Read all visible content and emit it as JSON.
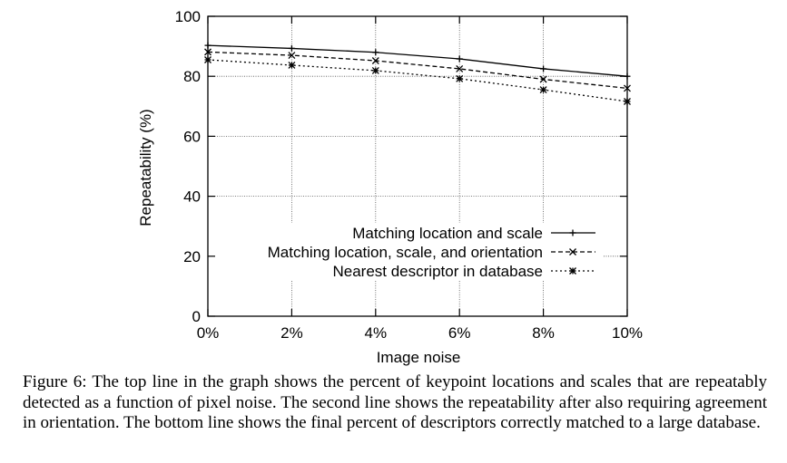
{
  "chart_data": {
    "type": "line",
    "title": "",
    "xlabel": "Image noise",
    "ylabel": "Repeatability (%)",
    "x": [
      0,
      2,
      4,
      6,
      8,
      10
    ],
    "x_tick_labels": [
      "0%",
      "2%",
      "4%",
      "6%",
      "8%",
      "10%"
    ],
    "y_ticks": [
      0,
      20,
      40,
      60,
      80,
      100
    ],
    "y_tick_labels": [
      "0",
      "20",
      "40",
      "60",
      "80",
      "100"
    ],
    "xlim": [
      0,
      10
    ],
    "ylim": [
      0,
      100
    ],
    "grid": true,
    "legend_position": "inside lower right",
    "series": [
      {
        "name": "Matching location and scale",
        "style": "solid",
        "marker": "plus",
        "values": [
          90.3,
          89.3,
          88.0,
          85.8,
          82.5,
          80.0
        ]
      },
      {
        "name": "Matching location, scale, and orientation",
        "style": "dashed",
        "marker": "cross",
        "values": [
          88.1,
          87.0,
          85.2,
          82.5,
          79.0,
          76.0
        ]
      },
      {
        "name": "Nearest descriptor in database",
        "style": "dotted",
        "marker": "star",
        "values": [
          85.5,
          83.7,
          81.9,
          79.2,
          75.5,
          71.6
        ]
      }
    ]
  },
  "caption": "Figure 6: The top line in the graph shows the percent of keypoint locations and scales that are repeatably detected as a function of pixel noise. The second line shows the repeatability after also requiring agreement in orientation. The bottom line shows the final percent of descriptors correctly matched to a large database."
}
